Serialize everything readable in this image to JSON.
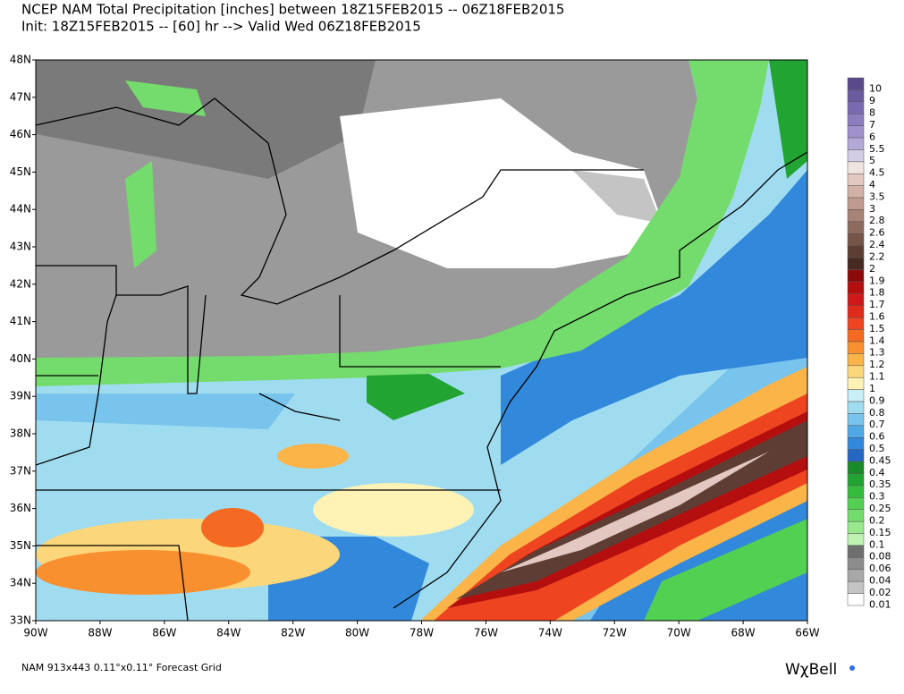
{
  "header": {
    "title": "NCEP NAM Total Precipitation [inches] between 18Z15FEB2015 -- 06Z18FEB2015",
    "subtitle": "Init: 18Z15FEB2015 -- [60] hr --> Valid Wed 06Z18FEB2015"
  },
  "map": {
    "latitude_labels": [
      "48N",
      "47N",
      "46N",
      "45N",
      "44N",
      "43N",
      "42N",
      "41N",
      "40N",
      "39N",
      "38N",
      "37N",
      "36N",
      "35N",
      "34N",
      "33N"
    ],
    "longitude_labels": [
      "90W",
      "88W",
      "86W",
      "84W",
      "82W",
      "80W",
      "78W",
      "76W",
      "74W",
      "72W",
      "70W",
      "68W",
      "66W"
    ]
  },
  "legend": {
    "levels": [
      {
        "label": "10",
        "color": "#5a4a8c"
      },
      {
        "label": "9",
        "color": "#6a5aa0"
      },
      {
        "label": "8",
        "color": "#7a6ab2"
      },
      {
        "label": "7",
        "color": "#8c7cc0"
      },
      {
        "label": "6",
        "color": "#a090cc"
      },
      {
        "label": "5.5",
        "color": "#b4a8d8"
      },
      {
        "label": "5",
        "color": "#d2cce6"
      },
      {
        "label": "4.5",
        "color": "#f0e4e0"
      },
      {
        "label": "4",
        "color": "#e2c8c0"
      },
      {
        "label": "3.5",
        "color": "#d2b0a6"
      },
      {
        "label": "3",
        "color": "#c09a8e"
      },
      {
        "label": "2.8",
        "color": "#a88276"
      },
      {
        "label": "2.6",
        "color": "#8e6a5e"
      },
      {
        "label": "2.4",
        "color": "#765448"
      },
      {
        "label": "2.2",
        "color": "#5e3e34"
      },
      {
        "label": "2",
        "color": "#462a22"
      },
      {
        "label": "1.9",
        "color": "#8c0a0a"
      },
      {
        "label": "1.8",
        "color": "#b40e0e"
      },
      {
        "label": "1.7",
        "color": "#d01818"
      },
      {
        "label": "1.6",
        "color": "#e02a1a"
      },
      {
        "label": "1.5",
        "color": "#ee4420"
      },
      {
        "label": "1.4",
        "color": "#f46a22"
      },
      {
        "label": "1.3",
        "color": "#f89030"
      },
      {
        "label": "1.2",
        "color": "#fab448"
      },
      {
        "label": "1.1",
        "color": "#fcd67a"
      },
      {
        "label": "1",
        "color": "#fef2b4"
      },
      {
        "label": "0.9",
        "color": "#c8eef6"
      },
      {
        "label": "0.8",
        "color": "#a0dcf0"
      },
      {
        "label": "0.7",
        "color": "#78c4ec"
      },
      {
        "label": "0.6",
        "color": "#50a8e4"
      },
      {
        "label": "0.5",
        "color": "#3288da"
      },
      {
        "label": "0.45",
        "color": "#2468c4"
      },
      {
        "label": "0.4",
        "color": "#1a8a2a"
      },
      {
        "label": "0.35",
        "color": "#22a432"
      },
      {
        "label": "0.3",
        "color": "#34bc3c"
      },
      {
        "label": "0.25",
        "color": "#52d052"
      },
      {
        "label": "0.2",
        "color": "#74dc6c"
      },
      {
        "label": "0.15",
        "color": "#98e88c"
      },
      {
        "label": "0.1",
        "color": "#bef2b2"
      },
      {
        "label": "0.08",
        "color": "#6e6e6e"
      },
      {
        "label": "0.06",
        "color": "#8c8c8c"
      },
      {
        "label": "0.04",
        "color": "#a8a8a8"
      },
      {
        "label": "0.02",
        "color": "#c4c4c4"
      },
      {
        "label": "0.01",
        "color": "#ffffff"
      }
    ]
  },
  "footer": {
    "grid_info": "NAM 913x443 0.11°x0.11° Forecast Grid",
    "logo": "WχBell"
  }
}
